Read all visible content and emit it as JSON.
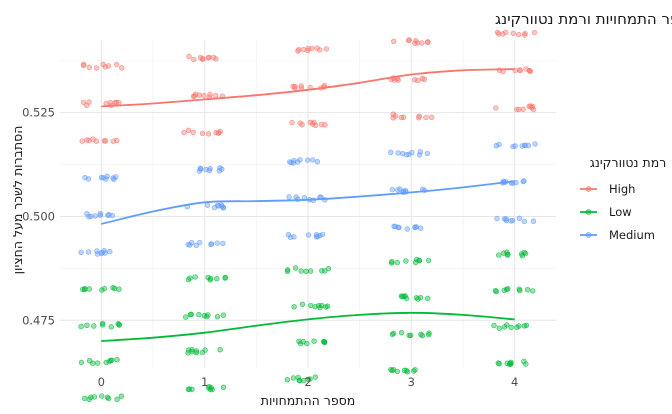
{
  "chart_data": {
    "type": "scatter",
    "title": "הסתברות ניבוי לשכר גבוה לפי מספר התמחויות ורמת נטוורקינג",
    "xlabel": "מספר ההתמחויות",
    "ylabel": "הסתברות לשכר מעל החציון",
    "x_ticks": [
      0,
      1,
      2,
      3,
      4
    ],
    "y_ticks": [
      0.475,
      0.5,
      0.525
    ],
    "y_tick_labels": [
      "0.475",
      "0.500",
      "0.525"
    ],
    "xlim": [
      -0.4,
      4.4
    ],
    "ylim": [
      0.4635,
      0.5425
    ],
    "grid": true,
    "legend": {
      "title": "רמת נטוורקינג",
      "position": "right",
      "entries": [
        "High",
        "Low",
        "Medium"
      ]
    },
    "series": [
      {
        "name": "High",
        "color": "#F8766D",
        "level_values": [
          [
            0.5362,
            0.5272,
            0.5183
          ],
          [
            0.5382,
            0.5292,
            0.5203
          ],
          [
            0.5401,
            0.5312,
            0.5223
          ],
          [
            0.5421,
            0.5331,
            0.5242
          ],
          [
            0.5441,
            0.5351,
            0.5262
          ]
        ],
        "trend_x": [
          0,
          0.5,
          1,
          1.5,
          2,
          2.5,
          3,
          3.5,
          4
        ],
        "trend_y": [
          0.5265,
          0.5272,
          0.5282,
          0.5292,
          0.5305,
          0.5322,
          0.5342,
          0.5352,
          0.5355
        ]
      },
      {
        "name": "Low",
        "color": "#00BA38",
        "level_values": [
          [
            0.4826,
            0.4738,
            0.4651,
            0.4563
          ],
          [
            0.485,
            0.4762,
            0.4675,
            0.4587
          ],
          [
            0.4872,
            0.4784,
            0.4697,
            0.4609
          ],
          [
            0.4892,
            0.4804,
            0.4717,
            0.4629
          ],
          [
            0.491,
            0.4822,
            0.4735,
            0.4647
          ]
        ],
        "trend_x": [
          0,
          0.5,
          1,
          1.5,
          2,
          2.5,
          3,
          3.5,
          4
        ],
        "trend_y": [
          0.47,
          0.4708,
          0.472,
          0.4737,
          0.4752,
          0.4763,
          0.4768,
          0.4763,
          0.4752
        ]
      },
      {
        "name": "Medium",
        "color": "#619CFF",
        "level_values": [
          [
            0.5094,
            0.5004,
            0.4914
          ],
          [
            0.5114,
            0.5024,
            0.4934
          ],
          [
            0.5133,
            0.5043,
            0.4953
          ],
          [
            0.5152,
            0.5062,
            0.4972
          ],
          [
            0.5171,
            0.5081,
            0.4991
          ]
        ],
        "trend_x": [
          0,
          0.5,
          1,
          1.5,
          2,
          2.5,
          3,
          3.5,
          4
        ],
        "trend_y": [
          0.4982,
          0.5012,
          0.5034,
          0.5037,
          0.504,
          0.5048,
          0.5058,
          0.507,
          0.5085
        ]
      }
    ]
  }
}
